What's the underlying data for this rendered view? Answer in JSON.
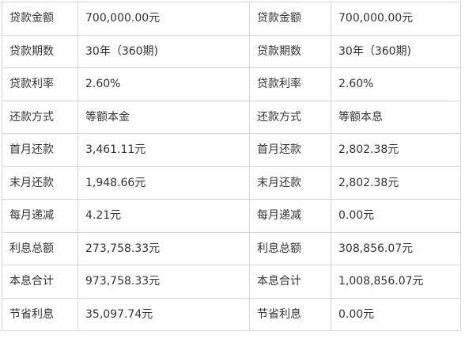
{
  "rows": [
    {
      "label_left": "贷款金额",
      "value_left": "700,000.00元",
      "label_right": "贷款金额",
      "value_right": "700,000.00元"
    },
    {
      "label_left": "贷款期数",
      "value_left": "30年（360期)",
      "label_right": "贷款期数",
      "value_right": "30年（360期)"
    },
    {
      "label_left": "贷款利率",
      "value_left": "2.60%",
      "label_right": "贷款利率",
      "value_right": "2.60%"
    },
    {
      "label_left": "还款方式",
      "value_left": "等额本金",
      "label_right": "还款方式",
      "value_right": "等额本息"
    },
    {
      "label_left": "首月还款",
      "value_left": "3,461.11元",
      "label_right": "首月还款",
      "value_right": "2,802.38元"
    },
    {
      "label_left": "末月还款",
      "value_left": "1,948.66元",
      "label_right": "末月还款",
      "value_right": "2,802.38元"
    },
    {
      "label_left": "每月递减",
      "value_left": "4.21元",
      "label_right": "每月递减",
      "value_right": "0.00元"
    },
    {
      "label_left": "利息总额",
      "value_left": "273,758.33元",
      "label_right": "利息总额",
      "value_right": "308,856.07元"
    },
    {
      "label_left": "本息合计",
      "value_left": "973,758.33元",
      "label_right": "本息合计",
      "value_right": "1,008,856.07元"
    },
    {
      "label_left": "节省利息",
      "value_left": "35,097.74元",
      "label_right": "节省利息",
      "value_right": "0.00元"
    }
  ]
}
